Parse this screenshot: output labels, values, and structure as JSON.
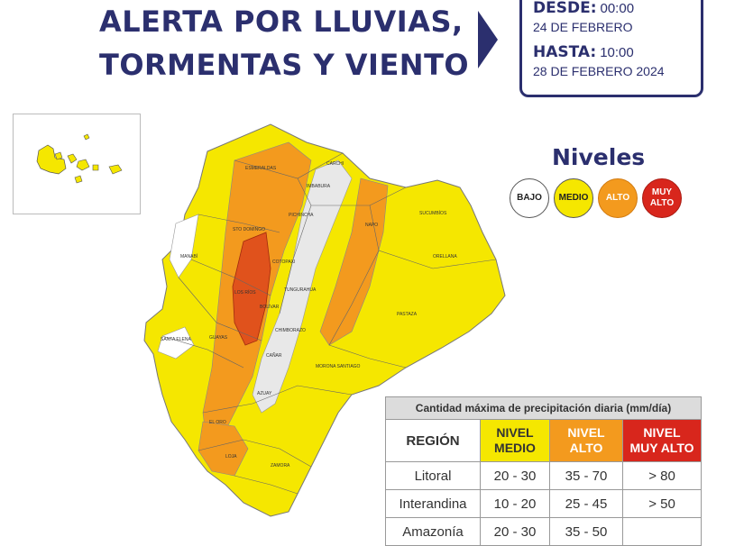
{
  "title": {
    "line1": "ALERTA POR LLUVIAS,",
    "line2": "TORMENTAS Y VIENTO"
  },
  "period": {
    "desde_label": "DESDE:",
    "desde_time": "00:00",
    "desde_date": "24 DE FEBRERO",
    "hasta_label": "HASTA:",
    "hasta_time": "10:00",
    "hasta_date": "28 DE FEBRERO 2024"
  },
  "levels": {
    "title": "Niveles",
    "items": [
      "BAJO",
      "MEDIO",
      "ALTO",
      "MUY ALTO"
    ]
  },
  "colors": {
    "bajo": "#ffffff",
    "medio": "#f5e700",
    "alto": "#f39a1e",
    "muy_alto": "#d8261c",
    "brand": "#2b2f6e"
  },
  "map": {
    "provinces": [
      "ESMERALDAS",
      "CARCHI",
      "IMBABURA",
      "SUCUMBÍOS",
      "STO DOMINGO",
      "PICHINCHA",
      "NAPO",
      "ORELLANA",
      "MANABÍ",
      "COTOPAXI",
      "TUNGURAHUA",
      "LOS RÍOS",
      "BOLÍVAR",
      "PASTAZA",
      "CHIMBORAZO",
      "SANTA ELENA",
      "GUAYAS",
      "CAÑAR",
      "MORONA SANTIAGO",
      "AZUAY",
      "EL ORO",
      "LOJA",
      "ZAMORA"
    ]
  },
  "table": {
    "caption": "Cantidad máxima de precipitación diaria (mm/día)",
    "headers": {
      "region": "REGIÓN",
      "medio": [
        "NIVEL",
        "MEDIO"
      ],
      "alto": [
        "NIVEL",
        "ALTO"
      ],
      "muy_alto": [
        "NIVEL",
        "MUY ALTO"
      ]
    },
    "rows": [
      {
        "region": "Litoral",
        "medio": "20 - 30",
        "alto": "35 - 70",
        "muy_alto": "> 80"
      },
      {
        "region": "Interandina",
        "medio": "10 - 20",
        "alto": "25 - 45",
        "muy_alto": "> 50"
      },
      {
        "region": "Amazonía",
        "medio": "20 - 30",
        "alto": "35 - 50",
        "muy_alto": ""
      }
    ]
  }
}
